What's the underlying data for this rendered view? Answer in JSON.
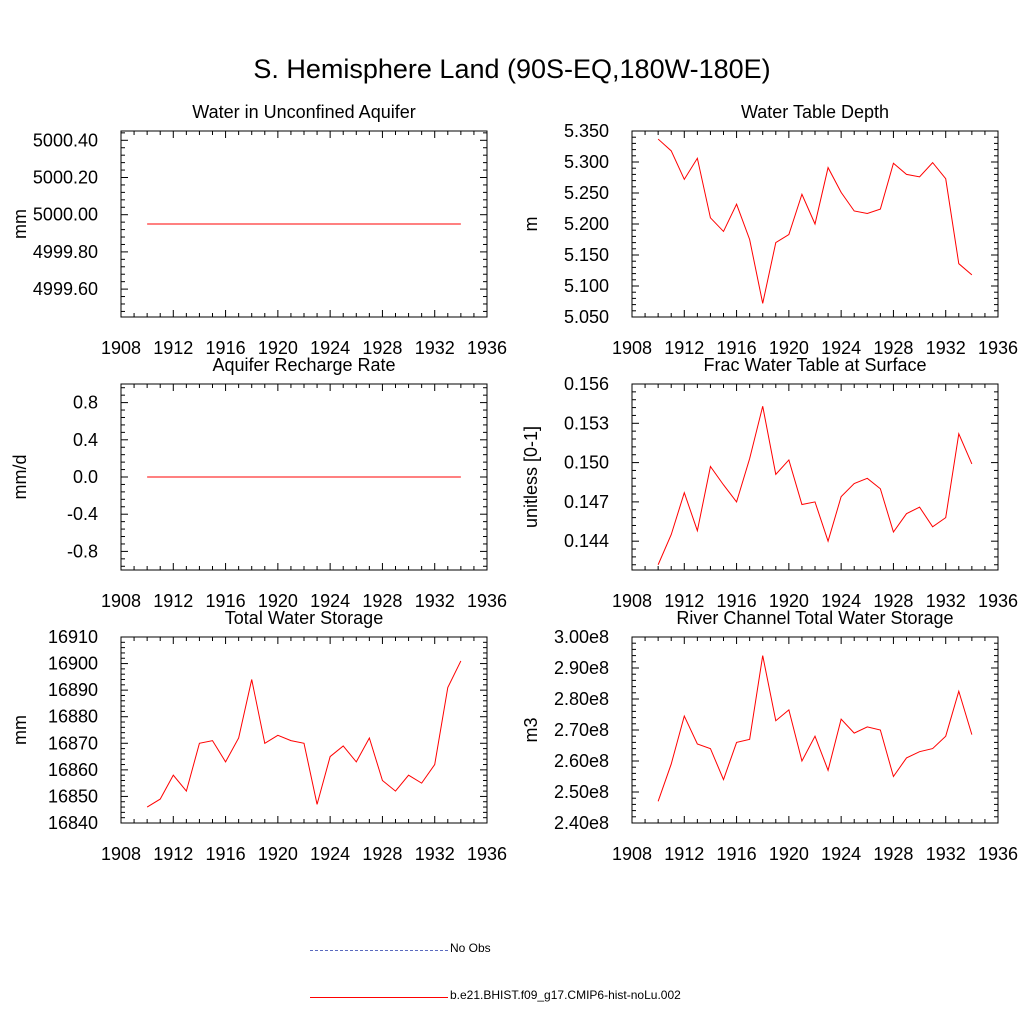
{
  "title": "S. Hemisphere Land (90S-EQ,180W-180E)",
  "legend": {
    "obs_label": "No Obs",
    "model_label": "b.e21.BHIST.f09_g17.CMIP6-hist-noLu.002",
    "obs_color": "#5a6abf",
    "model_color": "#ff0000"
  },
  "chart_data": [
    {
      "type": "line",
      "title": "Water in Unconfined Aquifer",
      "ylabel": "mm",
      "xlim": [
        1908,
        1936
      ],
      "ylim": [
        4999.45,
        5000.45
      ],
      "xticks": [
        "1908",
        "1912",
        "1916",
        "1920",
        "1924",
        "1928",
        "1932",
        "1936"
      ],
      "yticks": [
        {
          "v": 4999.6,
          "label": "4999.60"
        },
        {
          "v": 4999.8,
          "label": "4999.80"
        },
        {
          "v": 5000.0,
          "label": "5000.00"
        },
        {
          "v": 5000.2,
          "label": "5000.20"
        },
        {
          "v": 5000.4,
          "label": "5000.40"
        }
      ],
      "x": [
        1910,
        1934
      ],
      "series": [
        {
          "values": [
            4999.95,
            4999.95
          ]
        }
      ]
    },
    {
      "type": "line",
      "title": "Water Table Depth",
      "ylabel": "m",
      "xlim": [
        1908,
        1936
      ],
      "ylim": [
        5.05,
        5.35
      ],
      "xticks": [
        "1908",
        "1912",
        "1916",
        "1920",
        "1924",
        "1928",
        "1932",
        "1936"
      ],
      "yticks": [
        {
          "v": 5.05,
          "label": "5.050"
        },
        {
          "v": 5.1,
          "label": "5.100"
        },
        {
          "v": 5.15,
          "label": "5.150"
        },
        {
          "v": 5.2,
          "label": "5.200"
        },
        {
          "v": 5.25,
          "label": "5.250"
        },
        {
          "v": 5.3,
          "label": "5.300"
        },
        {
          "v": 5.35,
          "label": "5.350"
        }
      ],
      "x": [
        1910,
        1911,
        1912,
        1913,
        1914,
        1915,
        1916,
        1917,
        1918,
        1919,
        1920,
        1921,
        1922,
        1923,
        1924,
        1925,
        1926,
        1927,
        1928,
        1929,
        1930,
        1931,
        1932,
        1933,
        1934
      ],
      "series": [
        {
          "values": [
            5.337,
            5.318,
            5.272,
            5.306,
            5.21,
            5.188,
            5.232,
            5.175,
            5.072,
            5.17,
            5.183,
            5.248,
            5.2,
            5.291,
            5.251,
            5.221,
            5.217,
            5.224,
            5.298,
            5.28,
            5.276,
            5.299,
            5.273,
            5.136,
            5.118
          ]
        }
      ]
    },
    {
      "type": "line",
      "title": "Aquifer Recharge Rate",
      "ylabel": "mm/d",
      "xlim": [
        1908,
        1936
      ],
      "ylim": [
        -1.0,
        1.0
      ],
      "xticks": [
        "1908",
        "1912",
        "1916",
        "1920",
        "1924",
        "1928",
        "1932",
        "1936"
      ],
      "yticks": [
        {
          "v": -0.8,
          "label": "-0.8"
        },
        {
          "v": -0.4,
          "label": "-0.4"
        },
        {
          "v": 0.0,
          "label": "0.0"
        },
        {
          "v": 0.4,
          "label": "0.4"
        },
        {
          "v": 0.8,
          "label": "0.8"
        }
      ],
      "x": [
        1910,
        1934
      ],
      "series": [
        {
          "values": [
            0.0,
            0.0
          ]
        }
      ]
    },
    {
      "type": "line",
      "title": "Frac Water Table at Surface",
      "ylabel": "unitless [0-1]",
      "xlim": [
        1908,
        1936
      ],
      "ylim": [
        0.1418,
        0.156
      ],
      "xticks": [
        "1908",
        "1912",
        "1916",
        "1920",
        "1924",
        "1928",
        "1932",
        "1936"
      ],
      "yticks": [
        {
          "v": 0.144,
          "label": "0.144"
        },
        {
          "v": 0.147,
          "label": "0.147"
        },
        {
          "v": 0.15,
          "label": "0.150"
        },
        {
          "v": 0.153,
          "label": "0.153"
        },
        {
          "v": 0.156,
          "label": "0.156"
        }
      ],
      "x": [
        1910,
        1911,
        1912,
        1913,
        1914,
        1915,
        1916,
        1917,
        1918,
        1919,
        1920,
        1921,
        1922,
        1923,
        1924,
        1925,
        1926,
        1927,
        1928,
        1929,
        1930,
        1931,
        1932,
        1933,
        1934
      ],
      "series": [
        {
          "values": [
            0.1422,
            0.1445,
            0.1477,
            0.1448,
            0.1497,
            0.1483,
            0.147,
            0.1503,
            0.1543,
            0.1491,
            0.1502,
            0.1468,
            0.147,
            0.144,
            0.1474,
            0.1484,
            0.1488,
            0.148,
            0.1447,
            0.1461,
            0.1466,
            0.1451,
            0.1458,
            0.1522,
            0.1499
          ]
        }
      ]
    },
    {
      "type": "line",
      "title": "Total Water Storage",
      "ylabel": "mm",
      "xlim": [
        1908,
        1936
      ],
      "ylim": [
        16840,
        16910
      ],
      "xticks": [
        "1908",
        "1912",
        "1916",
        "1920",
        "1924",
        "1928",
        "1932",
        "1936"
      ],
      "yticks": [
        {
          "v": 16840,
          "label": "16840"
        },
        {
          "v": 16850,
          "label": "16850"
        },
        {
          "v": 16860,
          "label": "16860"
        },
        {
          "v": 16870,
          "label": "16870"
        },
        {
          "v": 16880,
          "label": "16880"
        },
        {
          "v": 16890,
          "label": "16890"
        },
        {
          "v": 16900,
          "label": "16900"
        },
        {
          "v": 16910,
          "label": "16910"
        }
      ],
      "x": [
        1910,
        1911,
        1912,
        1913,
        1914,
        1915,
        1916,
        1917,
        1918,
        1919,
        1920,
        1921,
        1922,
        1923,
        1924,
        1925,
        1926,
        1927,
        1928,
        1929,
        1930,
        1931,
        1932,
        1933,
        1934
      ],
      "series": [
        {
          "values": [
            16846,
            16849,
            16858,
            16852,
            16870,
            16871,
            16863,
            16872,
            16894,
            16870,
            16873,
            16871,
            16870,
            16847,
            16865,
            16869,
            16863,
            16872,
            16856,
            16852,
            16858,
            16855,
            16862,
            16891,
            16901
          ]
        }
      ]
    },
    {
      "type": "line",
      "title": "River Channel Total Water Storage",
      "ylabel": "m3",
      "xlim": [
        1908,
        1936
      ],
      "ylim": [
        240000000.0,
        300000000.0
      ],
      "xticks": [
        "1908",
        "1912",
        "1916",
        "1920",
        "1924",
        "1928",
        "1932",
        "1936"
      ],
      "yticks": [
        {
          "v": 240000000.0,
          "label": "2.40e8"
        },
        {
          "v": 250000000.0,
          "label": "2.50e8"
        },
        {
          "v": 260000000.0,
          "label": "2.60e8"
        },
        {
          "v": 270000000.0,
          "label": "2.70e8"
        },
        {
          "v": 280000000.0,
          "label": "2.80e8"
        },
        {
          "v": 290000000.0,
          "label": "2.90e8"
        },
        {
          "v": 300000000.0,
          "label": "3.00e8"
        }
      ],
      "x": [
        1910,
        1911,
        1912,
        1913,
        1914,
        1915,
        1916,
        1917,
        1918,
        1919,
        1920,
        1921,
        1922,
        1923,
        1924,
        1925,
        1926,
        1927,
        1928,
        1929,
        1930,
        1931,
        1932,
        1933,
        1934
      ],
      "series": [
        {
          "values": [
            247000000.0,
            259000000.0,
            274500000.0,
            265500000.0,
            264000000.0,
            254000000.0,
            266000000.0,
            267000000.0,
            294000000.0,
            273000000.0,
            276500000.0,
            260000000.0,
            268000000.0,
            257000000.0,
            273500000.0,
            269000000.0,
            271000000.0,
            270000000.0,
            255000000.0,
            261000000.0,
            263000000.0,
            264000000.0,
            268000000.0,
            282500000.0,
            268500000.0
          ]
        }
      ]
    }
  ]
}
